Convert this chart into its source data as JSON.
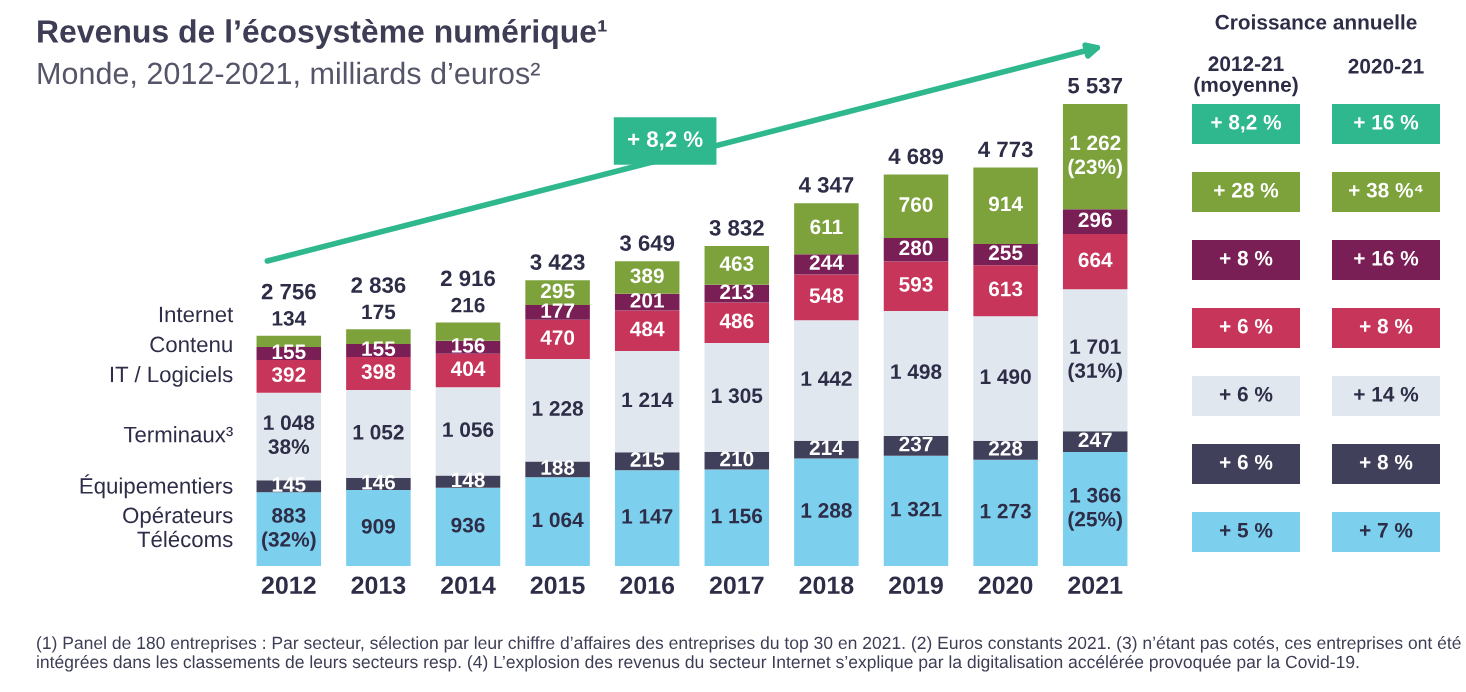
{
  "chart_data": {
    "type": "bar",
    "stacked": true,
    "title": "Revenus de l’écosystème numérique¹",
    "subtitle": "Monde, 2012-2021, milliards d’euros²",
    "categories": [
      "2012",
      "2013",
      "2014",
      "2015",
      "2016",
      "2017",
      "2018",
      "2019",
      "2020",
      "2021"
    ],
    "series": [
      {
        "name": "Opérateurs\nTélécoms",
        "color": "#7dcfee",
        "values": [
          883,
          909,
          936,
          1064,
          1147,
          1156,
          1288,
          1321,
          1273,
          1366
        ],
        "value_labels": [
          "883\n(32%)",
          "909",
          "936",
          "1 064",
          "1 147",
          "1 156",
          "1 288",
          "1 321",
          "1 273",
          "1 366\n(25%)"
        ]
      },
      {
        "name": "Équipementiers",
        "color": "#40405a",
        "values": [
          145,
          146,
          148,
          188,
          215,
          210,
          214,
          237,
          228,
          247
        ],
        "value_labels": [
          "145",
          "146",
          "148",
          "188",
          "215",
          "210",
          "214",
          "237",
          "228",
          "247"
        ]
      },
      {
        "name": "Terminaux³",
        "color": "#e1e7ee",
        "values": [
          1048,
          1052,
          1056,
          1228,
          1214,
          1305,
          1442,
          1498,
          1490,
          1701
        ],
        "value_labels": [
          "1 048\n38%",
          "1 052",
          "1 056",
          "1 228",
          "1 214",
          "1 305",
          "1 442",
          "1 498",
          "1 490",
          "1 701\n(31%)"
        ]
      },
      {
        "name": "IT / Logiciels",
        "color": "#c8355a",
        "values": [
          392,
          398,
          404,
          470,
          484,
          486,
          548,
          593,
          613,
          664
        ],
        "value_labels": [
          "392",
          "398",
          "404",
          "470",
          "484",
          "486",
          "548",
          "593",
          "613",
          "664"
        ]
      },
      {
        "name": "Contenu",
        "color": "#7a1f55",
        "values": [
          155,
          155,
          156,
          177,
          201,
          213,
          244,
          280,
          255,
          296
        ],
        "value_labels": [
          "155",
          "155",
          "156",
          "177",
          "201",
          "213",
          "244",
          "280",
          "255",
          "296"
        ]
      },
      {
        "name": "Internet",
        "color": "#7da23c",
        "values": [
          134,
          175,
          216,
          295,
          389,
          463,
          611,
          760,
          914,
          1262
        ],
        "value_labels": [
          "134",
          "175",
          "216",
          "295",
          "389",
          "463",
          "611",
          "760",
          "914",
          "1 262\n(23%)"
        ]
      }
    ],
    "totals": [
      "2 756",
      "2 836",
      "2 916",
      "3 423",
      "3 649",
      "3 832",
      "4 347",
      "4 689",
      "4 773",
      "5 537"
    ],
    "annotations": [
      "Croissance annuelle",
      "2012-21\n(moyenne)",
      "2020-21",
      "+ 8,2 %",
      "+ 16 %",
      "+ 28 %",
      "+ 38 %⁴",
      "+ 8 %",
      "+ 16 %",
      "+ 6 %",
      "+ 8 %",
      "+ 6 %",
      "+ 14 %",
      "+ 6 %",
      "+ 8 %",
      "+ 5 %",
      "+ 7 %",
      "+ 8,2 %",
      "(1) Panel de 180 entreprises : Par secteur, sélection par leur chiffre d’affaires des entreprises du top 30 en 2021. (2) Euros constants 2021. (3) n’étant pas cotés, ces entreprises ont été intégrées dans les classements de leurs secteurs resp. (4) L’explosion des revenus du secteur Internet s’explique par la digitalisation accélérée provoquée par la Covid-19."
    ],
    "legend": false,
    "grid": false,
    "tick_labels": "x"
  }
}
